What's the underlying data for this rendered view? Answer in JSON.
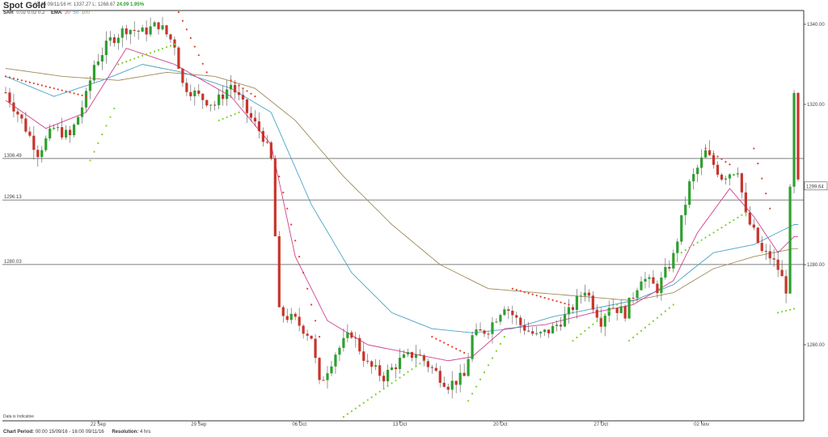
{
  "header": {
    "title": "Spot Gold",
    "quote_time": "05:46 09/11/16",
    "quote_hl": "H: 1337.27  L: 1268.67",
    "change": "24.09 1.95%"
  },
  "indicators": {
    "sar_label": "SAR",
    "sar_params": "0.02 0.02 0.2",
    "ema_label": "EMA",
    "ema_20": "20",
    "ema_50": "50",
    "ema_100": "100"
  },
  "footer": {
    "indicative": "Data is Indicative",
    "period_label": "Chart Period:",
    "period_value": "00:00 15/09/16 - 16:00 09/11/16",
    "resolution_label": "Resolution:",
    "resolution_value": "4 hrs"
  },
  "chart_data": {
    "type": "candlestick",
    "y_ticks": [
      "1340.00",
      "1320.00",
      "1280.00",
      "1260.00"
    ],
    "y_tick_values": [
      1340,
      1320,
      1280,
      1260
    ],
    "ylim": [
      1240,
      1345
    ],
    "x_ticks": [
      "22 Sep",
      "29 Sep",
      "06 Oct",
      "13 Oct",
      "20 Oct",
      "27 Oct",
      "02 Nov"
    ],
    "x_tick_index": [
      23,
      48,
      73,
      98,
      123,
      148,
      173
    ],
    "current_price": "1299.64",
    "horizontal_levels": [
      {
        "label": "1306.49",
        "value": 1306.49
      },
      {
        "label": "1296.13",
        "value": 1296.13
      },
      {
        "label": "1280.03",
        "value": 1280.03
      }
    ],
    "colors": {
      "up": "#2ea02e",
      "down": "#c8342b",
      "sar_up": "#7ad12a",
      "sar_down": "#e0402a",
      "ema20": "#d0408f",
      "ema50": "#4aa3c8",
      "ema100": "#a08a5a"
    },
    "close_path": [
      [
        0,
        1323
      ],
      [
        4,
        1316
      ],
      [
        8,
        1308
      ],
      [
        12,
        1314
      ],
      [
        16,
        1312
      ],
      [
        20,
        1322
      ],
      [
        22,
        1330
      ],
      [
        26,
        1336
      ],
      [
        30,
        1339
      ],
      [
        34,
        1338
      ],
      [
        38,
        1340
      ],
      [
        42,
        1335
      ],
      [
        44,
        1325
      ],
      [
        48,
        1322
      ],
      [
        52,
        1320
      ],
      [
        56,
        1325
      ],
      [
        60,
        1318
      ],
      [
        64,
        1312
      ],
      [
        66,
        1306
      ],
      [
        68,
        1268
      ],
      [
        72,
        1266
      ],
      [
        76,
        1262
      ],
      [
        78,
        1250
      ],
      [
        82,
        1258
      ],
      [
        86,
        1263
      ],
      [
        90,
        1255
      ],
      [
        94,
        1252
      ],
      [
        98,
        1256
      ],
      [
        102,
        1258
      ],
      [
        106,
        1254
      ],
      [
        110,
        1250
      ],
      [
        114,
        1252
      ],
      [
        116,
        1262
      ],
      [
        120,
        1264
      ],
      [
        124,
        1270
      ],
      [
        128,
        1265
      ],
      [
        132,
        1262
      ],
      [
        136,
        1264
      ],
      [
        140,
        1268
      ],
      [
        144,
        1274
      ],
      [
        148,
        1266
      ],
      [
        150,
        1270
      ],
      [
        154,
        1268
      ],
      [
        158,
        1277
      ],
      [
        162,
        1274
      ],
      [
        166,
        1282
      ],
      [
        170,
        1300
      ],
      [
        174,
        1308
      ],
      [
        178,
        1302
      ],
      [
        182,
        1304
      ],
      [
        184,
        1292
      ],
      [
        186,
        1288
      ],
      [
        188,
        1283
      ],
      [
        190,
        1282
      ],
      [
        192,
        1279
      ],
      [
        194,
        1274
      ],
      [
        196,
        1322
      ],
      [
        197,
        1300
      ]
    ],
    "ema20_path": [
      [
        0,
        1321
      ],
      [
        10,
        1314
      ],
      [
        20,
        1318
      ],
      [
        30,
        1334
      ],
      [
        42,
        1330
      ],
      [
        56,
        1322
      ],
      [
        66,
        1310
      ],
      [
        72,
        1282
      ],
      [
        80,
        1266
      ],
      [
        90,
        1260
      ],
      [
        100,
        1258
      ],
      [
        110,
        1256
      ],
      [
        116,
        1257
      ],
      [
        124,
        1264
      ],
      [
        134,
        1265
      ],
      [
        146,
        1268
      ],
      [
        156,
        1270
      ],
      [
        166,
        1276
      ],
      [
        172,
        1288
      ],
      [
        180,
        1299
      ],
      [
        186,
        1292
      ],
      [
        192,
        1283
      ],
      [
        196,
        1287
      ]
    ],
    "ema50_path": [
      [
        0,
        1327
      ],
      [
        12,
        1322
      ],
      [
        24,
        1326
      ],
      [
        34,
        1330
      ],
      [
        44,
        1328
      ],
      [
        56,
        1324
      ],
      [
        66,
        1318
      ],
      [
        76,
        1295
      ],
      [
        86,
        1278
      ],
      [
        96,
        1268
      ],
      [
        106,
        1264
      ],
      [
        116,
        1263
      ],
      [
        126,
        1264
      ],
      [
        136,
        1267
      ],
      [
        146,
        1269
      ],
      [
        156,
        1271
      ],
      [
        166,
        1275
      ],
      [
        176,
        1283
      ],
      [
        186,
        1285
      ],
      [
        196,
        1290
      ]
    ],
    "ema100_path": [
      [
        0,
        1329
      ],
      [
        14,
        1327
      ],
      [
        28,
        1326
      ],
      [
        40,
        1328
      ],
      [
        52,
        1327
      ],
      [
        62,
        1324
      ],
      [
        72,
        1316
      ],
      [
        84,
        1302
      ],
      [
        96,
        1290
      ],
      [
        108,
        1280
      ],
      [
        120,
        1274
      ],
      [
        132,
        1273
      ],
      [
        144,
        1272
      ],
      [
        156,
        1271
      ],
      [
        166,
        1273
      ],
      [
        176,
        1279
      ],
      [
        186,
        1282
      ],
      [
        196,
        1284
      ]
    ],
    "sar_segments": [
      {
        "type": "down",
        "from": [
          0,
          1327
        ],
        "to": [
          20,
          1322
        ]
      },
      {
        "type": "up",
        "from": [
          21,
          1306
        ],
        "to": [
          27,
          1319
        ]
      },
      {
        "type": "up",
        "from": [
          28,
          1330
        ],
        "to": [
          42,
          1335
        ]
      },
      {
        "type": "down",
        "from": [
          43,
          1343
        ],
        "to": [
          50,
          1328
        ]
      },
      {
        "type": "down",
        "from": [
          56,
          1326
        ],
        "to": [
          62,
          1322
        ]
      },
      {
        "type": "up",
        "from": [
          53,
          1316
        ],
        "to": [
          58,
          1318
        ]
      },
      {
        "type": "down",
        "from": [
          67,
          1306
        ],
        "to": [
          78,
          1262
        ]
      },
      {
        "type": "up",
        "from": [
          84,
          1242
        ],
        "to": [
          104,
          1256
        ]
      },
      {
        "type": "down",
        "from": [
          106,
          1262
        ],
        "to": [
          114,
          1258
        ]
      },
      {
        "type": "up",
        "from": [
          115,
          1246
        ],
        "to": [
          124,
          1262
        ]
      },
      {
        "type": "down",
        "from": [
          126,
          1274
        ],
        "to": [
          140,
          1270
        ]
      },
      {
        "type": "up",
        "from": [
          141,
          1261
        ],
        "to": [
          152,
          1270
        ]
      },
      {
        "type": "up",
        "from": [
          155,
          1261
        ],
        "to": [
          166,
          1270
        ]
      },
      {
        "type": "up",
        "from": [
          168,
          1283
        ],
        "to": [
          184,
          1293
        ]
      },
      {
        "type": "down",
        "from": [
          174,
          1309
        ],
        "to": [
          180,
          1305
        ]
      },
      {
        "type": "down",
        "from": [
          186,
          1309
        ],
        "to": [
          190,
          1294
        ]
      },
      {
        "type": "up",
        "from": [
          192,
          1268
        ],
        "to": [
          196,
          1269
        ]
      }
    ]
  }
}
